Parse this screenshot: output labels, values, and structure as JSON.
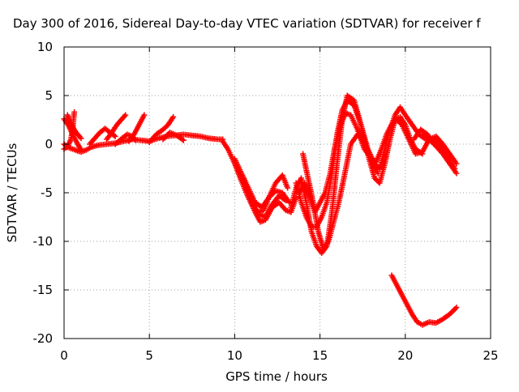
{
  "chart_data": {
    "type": "scatter",
    "title": "Day 300 of 2016, Sidereal Day-to-day VTEC variation (SDTVAR) for receiver f",
    "xlabel": "GPS time / hours",
    "ylabel": "SDTVAR / TECUs",
    "xlim": [
      0,
      25
    ],
    "ylim": [
      -20,
      10
    ],
    "xticks": [
      0,
      5,
      10,
      15,
      20,
      25
    ],
    "yticks": [
      -20,
      -15,
      -10,
      -5,
      0,
      5,
      10
    ],
    "xtick_labels": [
      "0",
      "5",
      "10",
      "15",
      "20",
      "25"
    ],
    "ytick_labels": [
      "-20",
      "-15",
      "-10",
      "-5",
      "0",
      "5",
      "10"
    ],
    "grid": true,
    "marker": "+",
    "color": "#ff0000",
    "series": [
      {
        "x": [
          0.0,
          0.2,
          0.5,
          0.8,
          1.0,
          1.3,
          1.6,
          2.0,
          2.5,
          3.0,
          3.5,
          4.0,
          4.5,
          5.0,
          5.5,
          6.0,
          6.5,
          7.0,
          7.5,
          8.0,
          8.5,
          9.0,
          9.3
        ],
        "y": [
          0.0,
          -0.3,
          -0.5,
          -0.7,
          -0.8,
          -0.6,
          -0.3,
          -0.1,
          0.0,
          0.1,
          0.3,
          0.5,
          0.4,
          0.3,
          0.6,
          0.8,
          0.9,
          1.0,
          0.9,
          0.8,
          0.6,
          0.5,
          0.5
        ]
      },
      {
        "x": [
          0.0,
          0.3,
          0.5,
          0.8,
          1.0
        ],
        "y": [
          2.6,
          1.8,
          1.0,
          0.0,
          -0.6
        ]
      },
      {
        "x": [
          0.2,
          0.3,
          0.5,
          0.7,
          1.0
        ],
        "y": [
          3.0,
          2.4,
          1.8,
          1.2,
          0.6
        ]
      },
      {
        "x": [
          0.0,
          0.2,
          0.4,
          0.5,
          0.6
        ],
        "y": [
          -0.5,
          -0.3,
          0.5,
          1.5,
          3.3
        ]
      },
      {
        "x": [
          1.5,
          1.8,
          2.1,
          2.4,
          2.7,
          3.0
        ],
        "y": [
          0.0,
          0.6,
          1.2,
          1.6,
          1.2,
          0.8
        ]
      },
      {
        "x": [
          2.5,
          2.8,
          3.1,
          3.4,
          3.6
        ],
        "y": [
          0.5,
          1.2,
          2.0,
          2.6,
          3.0
        ]
      },
      {
        "x": [
          3.0,
          3.4,
          3.7,
          4.0,
          4.2
        ],
        "y": [
          0.0,
          0.6,
          1.0,
          0.8,
          0.4
        ]
      },
      {
        "x": [
          3.8,
          4.1,
          4.4,
          4.7
        ],
        "y": [
          0.3,
          1.0,
          2.0,
          3.0
        ]
      },
      {
        "x": [
          5.0,
          5.4,
          5.8,
          6.1,
          6.4
        ],
        "y": [
          0.2,
          1.0,
          1.5,
          2.0,
          2.8
        ]
      },
      {
        "x": [
          5.8,
          6.2,
          6.6,
          7.0
        ],
        "y": [
          0.5,
          1.2,
          0.9,
          0.4
        ]
      },
      {
        "x": [
          9.3,
          9.6,
          10.0,
          10.4,
          10.8,
          11.2,
          11.5,
          11.8,
          12.2,
          12.6,
          13.0,
          13.3,
          13.6
        ],
        "y": [
          0.3,
          -0.5,
          -2.0,
          -3.8,
          -5.5,
          -7.0,
          -8.0,
          -7.8,
          -6.5,
          -6.0,
          -6.8,
          -7.0,
          -5.5
        ]
      },
      {
        "x": [
          10.0,
          10.4,
          10.8,
          11.2,
          11.6,
          12.0,
          12.4,
          12.8,
          13.1
        ],
        "y": [
          -1.5,
          -3.0,
          -4.5,
          -6.0,
          -6.5,
          -5.5,
          -4.0,
          -3.2,
          -4.5
        ]
      },
      {
        "x": [
          10.5,
          10.9,
          11.3,
          11.7,
          12.0,
          12.4,
          12.8,
          13.2
        ],
        "y": [
          -3.5,
          -5.5,
          -7.0,
          -6.8,
          -5.5,
          -4.8,
          -5.0,
          -6.0
        ]
      },
      {
        "x": [
          11.0,
          11.4,
          11.8,
          12.2,
          12.6,
          13.0
        ],
        "y": [
          -6.0,
          -7.2,
          -7.5,
          -6.2,
          -5.3,
          -5.8
        ]
      },
      {
        "x": [
          13.3,
          13.6,
          13.9,
          14.2,
          14.5,
          14.8,
          15.1,
          15.4,
          15.7,
          16.0,
          16.3,
          16.6,
          17.0,
          17.4,
          17.8,
          18.2,
          18.5,
          18.8,
          19.1,
          19.4,
          19.7,
          20.0,
          20.3,
          20.6,
          21.0
        ],
        "y": [
          -6.5,
          -4.5,
          -3.5,
          -6.0,
          -9.0,
          -10.5,
          -11.2,
          -10.5,
          -7.0,
          -2.0,
          2.5,
          5.0,
          4.5,
          2.0,
          -1.0,
          -3.5,
          -4.0,
          -2.0,
          0.5,
          2.5,
          2.8,
          2.0,
          0.5,
          -0.5,
          -1.0
        ]
      },
      {
        "x": [
          13.6,
          13.9,
          14.2,
          14.5,
          14.8,
          15.1,
          15.4,
          15.7,
          16.0,
          16.3,
          16.6,
          17.0,
          17.4,
          17.8,
          18.2,
          18.5,
          18.8,
          19.1,
          19.4,
          19.7,
          20.0,
          20.4,
          20.8,
          21.2,
          21.6,
          22.0,
          22.4,
          22.8
        ],
        "y": [
          -4.0,
          -6.0,
          -7.5,
          -8.5,
          -8.5,
          -7.5,
          -6.0,
          -3.0,
          1.0,
          3.5,
          4.5,
          4.0,
          2.0,
          -0.5,
          -2.0,
          -2.5,
          -0.5,
          1.5,
          3.0,
          3.8,
          3.0,
          2.0,
          1.0,
          0.5,
          0.5,
          0.0,
          -0.8,
          -1.5
        ]
      },
      {
        "x": [
          13.8,
          14.1,
          14.4,
          14.7,
          15.0,
          15.3,
          15.6,
          15.9,
          16.2,
          16.5,
          16.8,
          17.2,
          17.6,
          18.0,
          18.3,
          18.6,
          18.9,
          19.2,
          19.5,
          19.8,
          20.2,
          20.6,
          21.0,
          21.4,
          21.8,
          22.2,
          22.6,
          23.0
        ],
        "y": [
          -5.0,
          -4.0,
          -5.5,
          -7.0,
          -6.0,
          -5.0,
          -3.0,
          0.0,
          2.0,
          3.2,
          3.0,
          1.5,
          -0.5,
          -1.5,
          -1.8,
          -0.5,
          1.0,
          2.0,
          2.5,
          2.0,
          0.5,
          -1.0,
          -0.8,
          0.5,
          0.8,
          0.0,
          -1.0,
          -2.0
        ]
      },
      {
        "x": [
          14.0,
          14.3,
          14.6,
          14.9,
          15.2,
          15.5,
          15.8,
          16.1,
          16.4,
          16.8,
          17.2,
          17.6,
          18.0,
          18.4
        ],
        "y": [
          -1.0,
          -3.5,
          -6.0,
          -9.0,
          -10.8,
          -10.0,
          -8.0,
          -6.0,
          -3.5,
          0.0,
          1.0,
          0.2,
          -1.5,
          -3.0
        ]
      },
      {
        "x": [
          19.2,
          19.5,
          19.8,
          20.1,
          20.4,
          20.7,
          21.0,
          21.4,
          21.8,
          22.2,
          22.6,
          23.0
        ],
        "y": [
          -13.5,
          -14.5,
          -15.5,
          -16.5,
          -17.5,
          -18.3,
          -18.6,
          -18.3,
          -18.4,
          -18.0,
          -17.5,
          -16.8
        ]
      },
      {
        "x": [
          20.5,
          20.9,
          21.3,
          21.7,
          22.1,
          22.5,
          22.9
        ],
        "y": [
          0.5,
          1.5,
          1.0,
          0.0,
          -0.5,
          -1.5,
          -2.5
        ]
      },
      {
        "x": [
          21.0,
          21.4,
          21.8,
          22.2,
          22.6,
          23.0
        ],
        "y": [
          1.0,
          0.5,
          -0.2,
          -1.0,
          -2.0,
          -3.0
        ]
      }
    ]
  }
}
